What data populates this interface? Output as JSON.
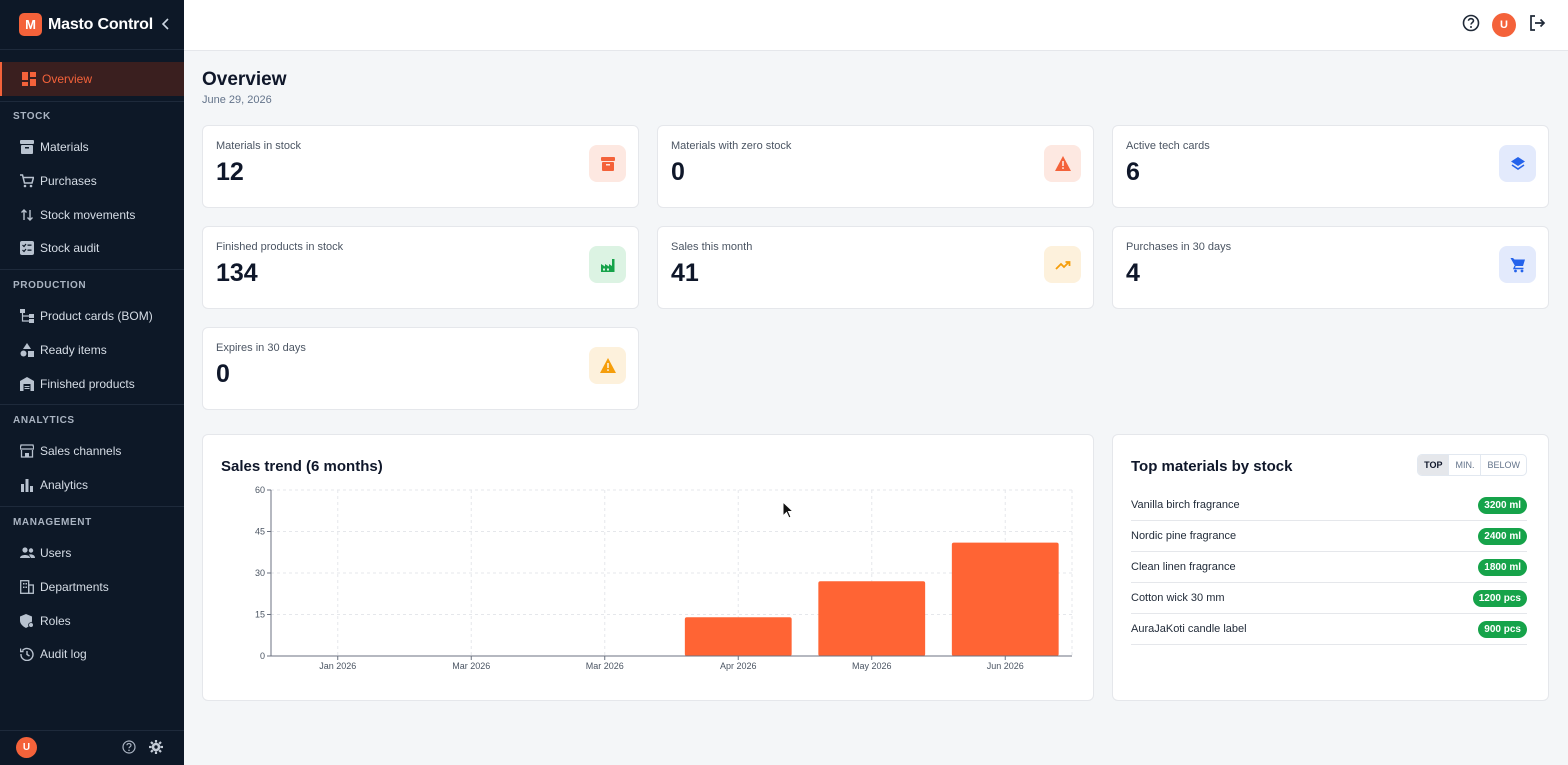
{
  "app": {
    "logo_letter": "M",
    "name": "Masto Control"
  },
  "sidebar": {
    "active": {
      "label": "Overview",
      "icon": "dashboard-icon"
    },
    "sections": [
      {
        "label": "STOCK",
        "items": [
          {
            "label": "Materials",
            "icon": "archive-icon"
          },
          {
            "label": "Purchases",
            "icon": "cart-icon"
          },
          {
            "label": "Stock movements",
            "icon": "arrows-updown-icon"
          },
          {
            "label": "Stock audit",
            "icon": "checklist-icon"
          }
        ]
      },
      {
        "label": "PRODUCTION",
        "items": [
          {
            "label": "Product cards (BOM)",
            "icon": "tree-icon"
          },
          {
            "label": "Ready items",
            "icon": "shapes-icon"
          },
          {
            "label": "Finished products",
            "icon": "warehouse-icon"
          }
        ]
      },
      {
        "label": "ANALYTICS",
        "items": [
          {
            "label": "Sales channels",
            "icon": "store-icon"
          },
          {
            "label": "Analytics",
            "icon": "bar-chart-icon"
          }
        ]
      },
      {
        "label": "MANAGEMENT",
        "items": [
          {
            "label": "Users",
            "icon": "users-icon"
          },
          {
            "label": "Departments",
            "icon": "building-icon"
          },
          {
            "label": "Roles",
            "icon": "shield-icon"
          },
          {
            "label": "Audit log",
            "icon": "history-icon"
          }
        ]
      }
    ],
    "footer": {
      "avatar_letter": "U"
    }
  },
  "topbar": {
    "avatar_letter": "U"
  },
  "page": {
    "title": "Overview",
    "date": "June 29, 2026"
  },
  "stats": [
    {
      "label": "Materials in stock",
      "value": "12",
      "icon": "archive-icon",
      "color": "#f4623a",
      "bg": "#fde8e1"
    },
    {
      "label": "Materials with zero stock",
      "value": "0",
      "icon": "warning-icon",
      "color": "#f4623a",
      "bg": "#fde8e1"
    },
    {
      "label": "Active tech cards",
      "value": "6",
      "icon": "layers-icon",
      "color": "#2563eb",
      "bg": "#e3eafc"
    },
    {
      "label": "Finished products in stock",
      "value": "134",
      "icon": "factory-icon",
      "color": "#16a34a",
      "bg": "#dcf3e3"
    },
    {
      "label": "Sales this month",
      "value": "41",
      "icon": "trending-up-icon",
      "color": "#f59e0b",
      "bg": "#fdf1dc"
    },
    {
      "label": "Purchases in 30 days",
      "value": "4",
      "icon": "cart-icon",
      "color": "#2563eb",
      "bg": "#e3eafc"
    },
    {
      "label": "Expires in 30 days",
      "value": "0",
      "icon": "warning-icon",
      "color": "#f59e0b",
      "bg": "#fdf1dc"
    }
  ],
  "sales_panel": {
    "title": "Sales trend (6 months)"
  },
  "chart_data": {
    "type": "bar",
    "categories": [
      "Jan 2026",
      "Mar 2026",
      "Mar 2026",
      "Apr 2026",
      "May 2026",
      "Jun 2026"
    ],
    "values": [
      0,
      0,
      0,
      14,
      27,
      41
    ],
    "ylim": [
      0,
      60
    ],
    "yticks": [
      0,
      15,
      30,
      45,
      60
    ],
    "grid": true,
    "color": "#ff6434"
  },
  "materials_panel": {
    "title": "Top materials by stock",
    "segments": [
      "TOP",
      "MIN.",
      "BELOW"
    ],
    "rows": [
      {
        "name": "Vanilla birch fragrance",
        "qty": "3200 ml"
      },
      {
        "name": "Nordic pine fragrance",
        "qty": "2400 ml"
      },
      {
        "name": "Clean linen fragrance",
        "qty": "1800 ml"
      },
      {
        "name": "Cotton wick 30 mm",
        "qty": "1200 pcs"
      },
      {
        "name": "AuraJaKoti candle label",
        "qty": "900 pcs"
      }
    ]
  }
}
